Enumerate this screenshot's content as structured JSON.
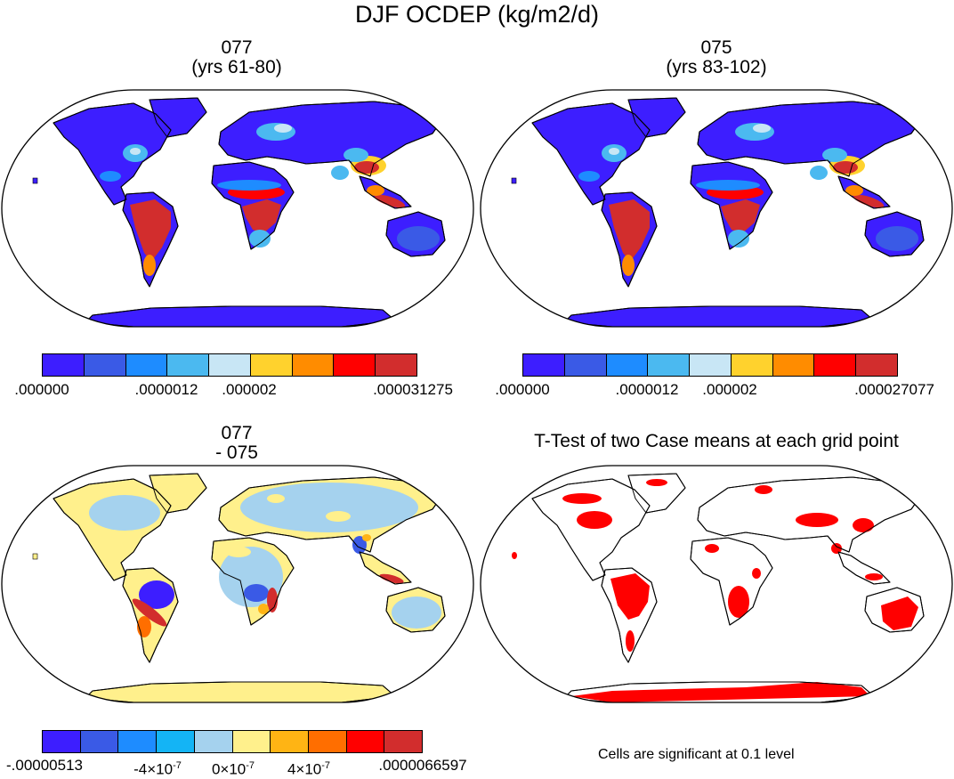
{
  "figure_title": "DJF OCDEP (kg/m2/d)",
  "panels": [
    {
      "line1": "077",
      "line2": "(yrs 61-80)",
      "colorbar": {
        "colors": [
          "#3d1eff",
          "#3a5ae6",
          "#1e8cff",
          "#4bb9f0",
          "#c8e6f5",
          "#ffd22d",
          "#ff8c00",
          "#ff0000",
          "#d22d2d"
        ],
        "labels": [
          ".000000",
          ".0000012",
          ".000002",
          ".000031275"
        ]
      }
    },
    {
      "line1": "075",
      "line2": "(yrs 83-102)",
      "colorbar": {
        "colors": [
          "#3d1eff",
          "#3a5ae6",
          "#1e8cff",
          "#4bb9f0",
          "#c8e6f5",
          "#ffd22d",
          "#ff8c00",
          "#ff0000",
          "#d22d2d"
        ],
        "labels": [
          ".000000",
          ".0000012",
          ".000002",
          ".000027077"
        ]
      }
    },
    {
      "line1": "077",
      "line2": "- 075",
      "colorbar": {
        "colors": [
          "#3d1eff",
          "#3a5ae6",
          "#1e8cff",
          "#14b4f5",
          "#a5d2ee",
          "#fff08c",
          "#ffb414",
          "#ff6e00",
          "#ff0000",
          "#d22d2d"
        ],
        "labels": [
          "-.00000513",
          "-4×10",
          "0×10",
          "4×10",
          ".0000066597"
        ],
        "exponent": "-7"
      }
    },
    {
      "line1": "T-Test of two Case means at each grid point",
      "note": "Cells are significant at 0.1 level"
    }
  ]
}
